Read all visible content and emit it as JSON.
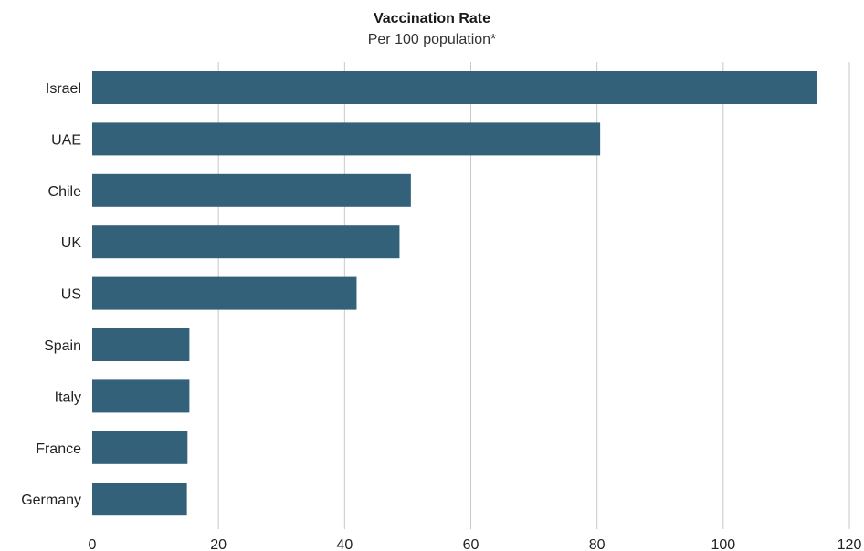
{
  "chart_data": {
    "type": "bar",
    "orientation": "horizontal",
    "title": "Vaccination Rate",
    "subtitle": "Per 100 population*",
    "categories": [
      "Israel",
      "UAE",
      "Chile",
      "UK",
      "US",
      "Spain",
      "Italy",
      "France",
      "Germany"
    ],
    "values": [
      114.8,
      80.5,
      50.5,
      48.7,
      41.9,
      15.4,
      15.4,
      15.1,
      15.0
    ],
    "xlim": [
      0,
      120
    ],
    "xticks": [
      0,
      20,
      40,
      60,
      80,
      100,
      120
    ],
    "grid": "vertical",
    "legend": "none",
    "bar_color": "#336179",
    "grid_color": "#c8c8c8"
  }
}
